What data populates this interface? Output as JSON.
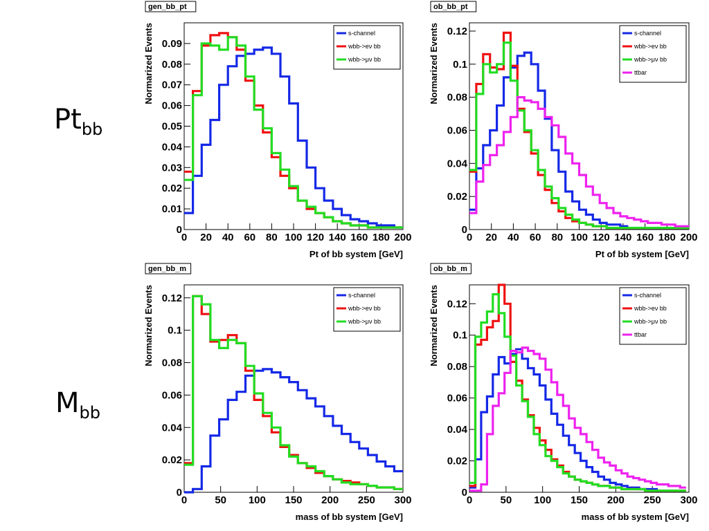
{
  "row_labels": {
    "pt": {
      "base": "Pt",
      "sub": "bb"
    },
    "m": {
      "base": "M",
      "sub": "bb"
    }
  },
  "colors": {
    "s-channel": "#1428e6",
    "wbb->ev bb": "#ee1111",
    "wbb->uv bb": "#22dd22",
    "ttbar": "#ee22ee"
  },
  "chart_data": [
    {
      "type": "line",
      "title": "gen_bb_pt",
      "xlabel": "Pt of bb system [GeV]",
      "ylabel": "Normarized Events",
      "xlim": [
        0,
        200
      ],
      "ylim": [
        0,
        0.1
      ],
      "xticks": [
        "0",
        "20",
        "40",
        "60",
        "80",
        "100",
        "120",
        "140",
        "160",
        "180",
        "200"
      ],
      "yticks": [
        0,
        0.01,
        0.02,
        0.03,
        0.04,
        0.05,
        0.06,
        0.07,
        0.08,
        0.09
      ],
      "ytick_labels": [
        "0",
        "0.01",
        "0.02",
        "0.03",
        "0.04",
        "0.05",
        "0.06",
        "0.07",
        "0.08",
        "0.09"
      ],
      "legend_position": "top-right",
      "bin_width": 8,
      "series": [
        {
          "name": "s-channel",
          "values": [
            0.008,
            0.026,
            0.041,
            0.053,
            0.07,
            0.079,
            0.084,
            0.085,
            0.087,
            0.088,
            0.085,
            0.074,
            0.061,
            0.043,
            0.03,
            0.02,
            0.014,
            0.01,
            0.007,
            0.005,
            0.004,
            0.003,
            0.002,
            0.002,
            0.001
          ]
        },
        {
          "name": "wbb->ev bb",
          "values": [
            0.028,
            0.067,
            0.089,
            0.094,
            0.095,
            0.093,
            0.087,
            0.072,
            0.06,
            0.047,
            0.035,
            0.026,
            0.02,
            0.014,
            0.01,
            0.008,
            0.006,
            0.004,
            0.003,
            0.002,
            0.002,
            0.001,
            0.001,
            0.001,
            0.001
          ]
        },
        {
          "name": "wbb->uv bb",
          "values": [
            0.024,
            0.065,
            0.09,
            0.089,
            0.087,
            0.093,
            0.089,
            0.074,
            0.058,
            0.049,
            0.037,
            0.029,
            0.021,
            0.014,
            0.011,
            0.008,
            0.006,
            0.004,
            0.003,
            0.002,
            0.002,
            0.001,
            0.001,
            0.001,
            0.001
          ]
        }
      ]
    },
    {
      "type": "line",
      "title": "ob_bb_pt",
      "xlabel": "Pt of bb system [GeV]",
      "ylabel": "Normarized Events",
      "xlim": [
        0,
        200
      ],
      "ylim": [
        0,
        0.125
      ],
      "xticks": [
        "0",
        "20",
        "40",
        "60",
        "80",
        "100",
        "120",
        "140",
        "160",
        "180",
        "200"
      ],
      "yticks": [
        0,
        0.02,
        0.04,
        0.06,
        0.08,
        0.1,
        0.12
      ],
      "ytick_labels": [
        "0",
        "0.02",
        "0.04",
        "0.06",
        "0.08",
        "0.1",
        "0.12"
      ],
      "legend_position": "top-right",
      "bin_width": 6.25,
      "series": [
        {
          "name": "s-channel",
          "values": [
            0.012,
            0.037,
            0.051,
            0.06,
            0.075,
            0.092,
            0.098,
            0.105,
            0.107,
            0.1,
            0.084,
            0.067,
            0.048,
            0.035,
            0.023,
            0.017,
            0.012,
            0.009,
            0.006,
            0.004,
            0.003,
            0.003,
            0.002,
            0.001,
            0.001,
            0.001,
            0.001,
            0.001,
            0.001,
            0.001,
            0.001,
            0.001
          ]
        },
        {
          "name": "wbb->ev bb",
          "values": [
            0.035,
            0.088,
            0.106,
            0.098,
            0.097,
            0.119,
            0.099,
            0.073,
            0.059,
            0.046,
            0.033,
            0.024,
            0.016,
            0.011,
            0.007,
            0.005,
            0.004,
            0.003,
            0.002,
            0.002,
            0.001,
            0.001,
            0.001,
            0.001,
            0.001,
            0.001,
            0.001,
            0.001,
            0.001,
            0.001,
            0.001,
            0.001
          ]
        },
        {
          "name": "wbb->uv bb",
          "values": [
            0.036,
            0.082,
            0.1,
            0.095,
            0.1,
            0.113,
            0.09,
            0.072,
            0.06,
            0.048,
            0.036,
            0.026,
            0.019,
            0.013,
            0.009,
            0.006,
            0.004,
            0.003,
            0.002,
            0.002,
            0.001,
            0.001,
            0.001,
            0.001,
            0.001,
            0.001,
            0.001,
            0.001,
            0.001,
            0.001,
            0.001,
            0.001
          ]
        },
        {
          "name": "ttbar",
          "values": [
            0.01,
            0.029,
            0.039,
            0.045,
            0.051,
            0.059,
            0.068,
            0.08,
            0.078,
            0.077,
            0.073,
            0.068,
            0.063,
            0.056,
            0.046,
            0.04,
            0.033,
            0.026,
            0.021,
            0.016,
            0.013,
            0.01,
            0.008,
            0.007,
            0.006,
            0.005,
            0.004,
            0.004,
            0.003,
            0.003,
            0.002,
            0.002
          ]
        }
      ]
    },
    {
      "type": "line",
      "title": "gen_bb_m",
      "xlabel": "mass of bb system [GeV]",
      "ylabel": "Normarized Events",
      "xlim": [
        0,
        300
      ],
      "ylim": [
        0,
        0.128
      ],
      "xticks": [
        "0",
        "50",
        "100",
        "150",
        "200",
        "250",
        "300"
      ],
      "yticks": [
        0,
        0.02,
        0.04,
        0.06,
        0.08,
        0.1,
        0.12
      ],
      "ytick_labels": [
        "0",
        "0.02",
        "0.04",
        "0.06",
        "0.08",
        "0.1",
        "0.12"
      ],
      "legend_position": "top-right",
      "bin_width": 12,
      "series": [
        {
          "name": "s-channel",
          "values": [
            0,
            0.002,
            0.016,
            0.035,
            0.045,
            0.057,
            0.062,
            0.072,
            0.075,
            0.076,
            0.074,
            0.071,
            0.068,
            0.063,
            0.058,
            0.053,
            0.047,
            0.041,
            0.036,
            0.031,
            0.027,
            0.023,
            0.019,
            0.016,
            0.013,
            0.011,
            0.009
          ]
        },
        {
          "name": "wbb->ev bb",
          "values": [
            0.018,
            0.121,
            0.11,
            0.093,
            0.094,
            0.097,
            0.092,
            0.075,
            0.057,
            0.047,
            0.037,
            0.028,
            0.023,
            0.018,
            0.015,
            0.012,
            0.01,
            0.008,
            0.007,
            0.006,
            0.005,
            0.004,
            0.003,
            0.003,
            0.002,
            0.002,
            0.002
          ]
        },
        {
          "name": "wbb->uv bb",
          "values": [
            0.017,
            0.121,
            0.116,
            0.094,
            0.089,
            0.094,
            0.092,
            0.078,
            0.061,
            0.049,
            0.04,
            0.029,
            0.022,
            0.018,
            0.016,
            0.013,
            0.01,
            0.008,
            0.006,
            0.005,
            0.005,
            0.004,
            0.003,
            0.003,
            0.002,
            0.002,
            0.002
          ]
        }
      ]
    },
    {
      "type": "line",
      "title": "ob_bb_m",
      "xlabel": "mass of bb system [GeV]",
      "ylabel": "Normarized Events",
      "xlim": [
        0,
        300
      ],
      "ylim": [
        0,
        0.132
      ],
      "xticks": [
        "0",
        "50",
        "100",
        "150",
        "200",
        "250",
        "300"
      ],
      "yticks": [
        0,
        0.02,
        0.04,
        0.06,
        0.08,
        0.1,
        0.12
      ],
      "ytick_labels": [
        "0",
        "0.02",
        "0.04",
        "0.06",
        "0.08",
        "0.1",
        "0.12"
      ],
      "legend_position": "top-right",
      "bin_width": 8,
      "series": [
        {
          "name": "s-channel",
          "values": [
            0.003,
            0.021,
            0.051,
            0.061,
            0.075,
            0.086,
            0.082,
            0.088,
            0.091,
            0.085,
            0.079,
            0.075,
            0.068,
            0.059,
            0.05,
            0.043,
            0.036,
            0.03,
            0.025,
            0.02,
            0.016,
            0.013,
            0.01,
            0.008,
            0.006,
            0.005,
            0.004,
            0.003,
            0.003,
            0.002,
            0.002,
            0.002,
            0.001,
            0.001,
            0.001,
            0.001,
            0.001
          ]
        },
        {
          "name": "wbb->ev bb",
          "values": [
            0.004,
            0.094,
            0.097,
            0.105,
            0.109,
            0.136,
            0.12,
            0.083,
            0.071,
            0.059,
            0.049,
            0.041,
            0.033,
            0.027,
            0.021,
            0.017,
            0.013,
            0.01,
            0.008,
            0.007,
            0.006,
            0.005,
            0.004,
            0.004,
            0.003,
            0.003,
            0.002,
            0.002,
            0.002,
            0.002,
            0.001,
            0.001,
            0.001,
            0.001,
            0.001,
            0.001,
            0.001
          ]
        },
        {
          "name": "wbb->uv bb",
          "values": [
            0.006,
            0.099,
            0.108,
            0.115,
            0.126,
            0.114,
            0.099,
            0.087,
            0.068,
            0.058,
            0.048,
            0.037,
            0.03,
            0.023,
            0.02,
            0.016,
            0.012,
            0.01,
            0.008,
            0.007,
            0.006,
            0.005,
            0.004,
            0.004,
            0.003,
            0.003,
            0.002,
            0.002,
            0.002,
            0.002,
            0.001,
            0.001,
            0.001,
            0.001,
            0.001,
            0.001,
            0.001
          ]
        },
        {
          "name": "ttbar",
          "values": [
            0.001,
            0.001,
            0.005,
            0.037,
            0.055,
            0.063,
            0.076,
            0.09,
            0.089,
            0.092,
            0.09,
            0.088,
            0.085,
            0.078,
            0.07,
            0.062,
            0.055,
            0.047,
            0.041,
            0.037,
            0.032,
            0.027,
            0.022,
            0.019,
            0.017,
            0.014,
            0.012,
            0.01,
            0.009,
            0.008,
            0.007,
            0.006,
            0.005,
            0.005,
            0.004,
            0.004,
            0.003
          ]
        }
      ]
    }
  ]
}
